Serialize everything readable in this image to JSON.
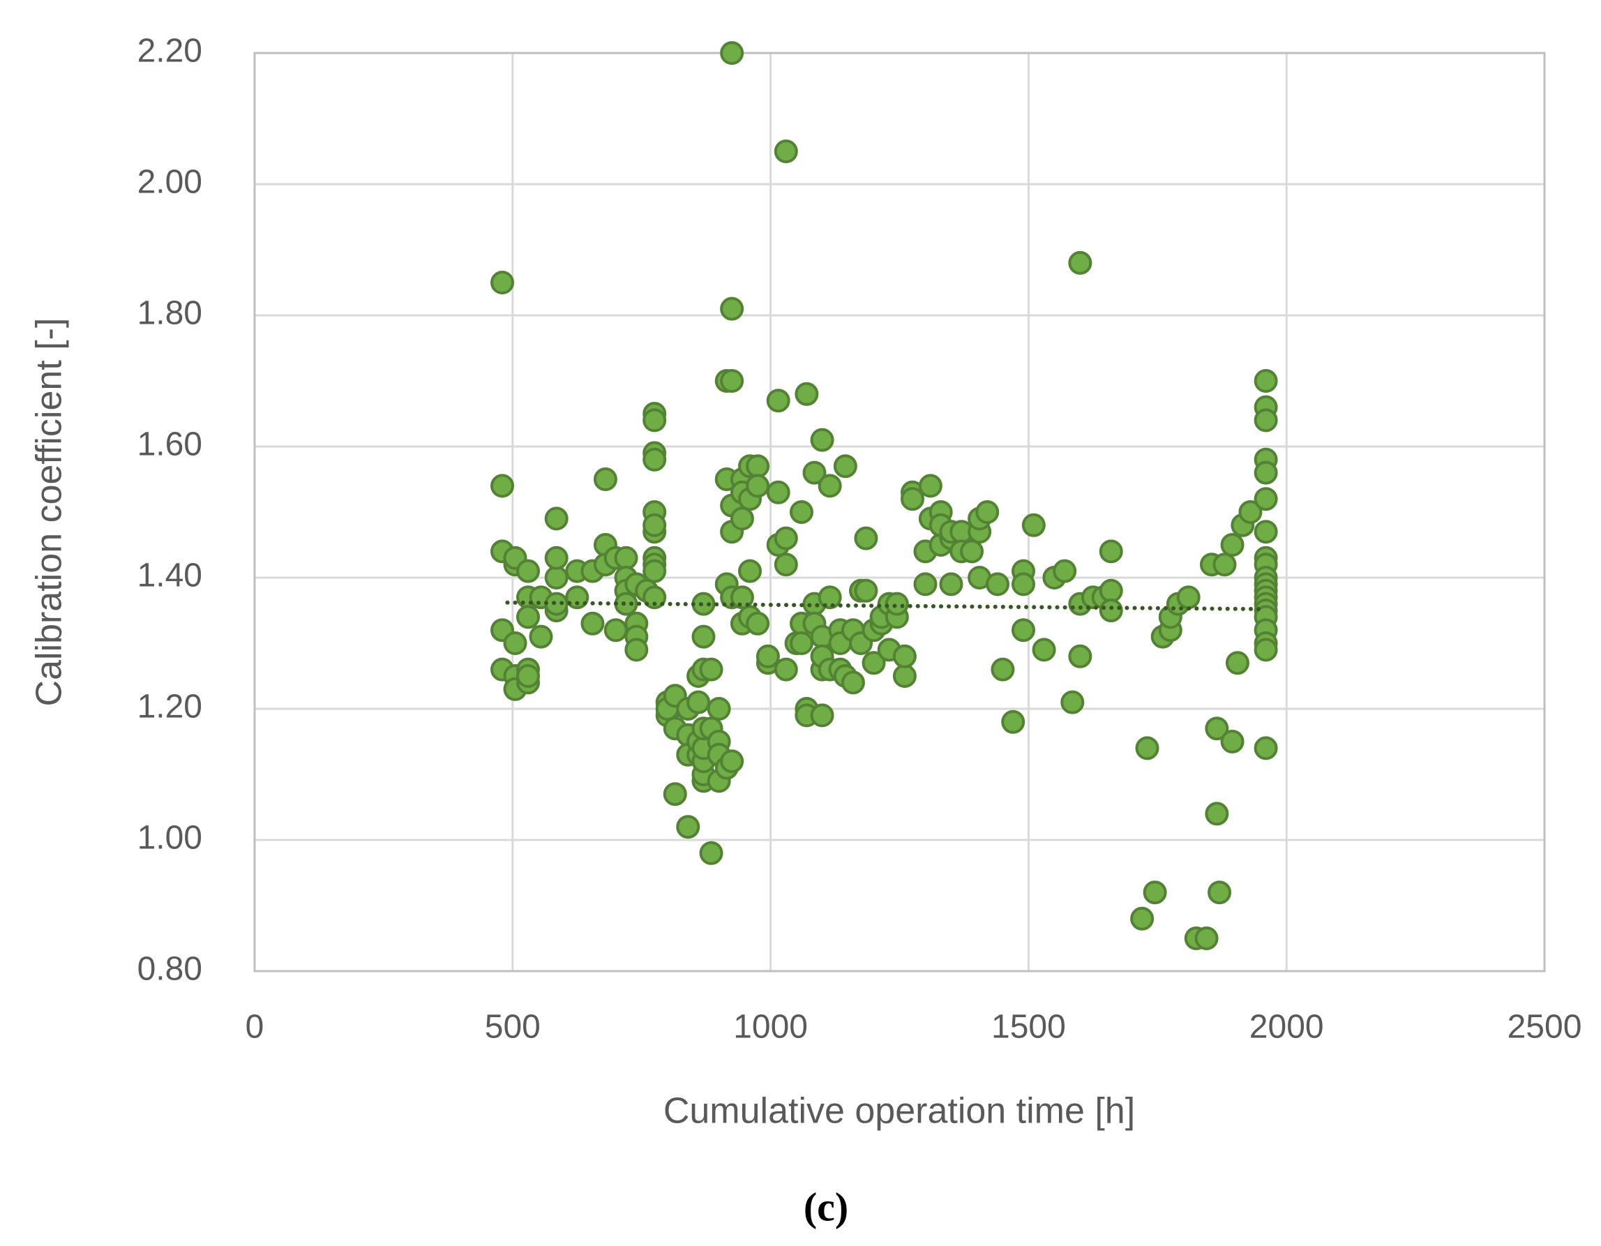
{
  "chart_data": {
    "type": "scatter",
    "xlabel": "Cumulative operation time [h]",
    "ylabel": "Calibration coefficient [-]",
    "caption": "(c)",
    "xlim": [
      0,
      2500
    ],
    "xticks": [
      0,
      500,
      1000,
      1500,
      2000,
      2500
    ],
    "ylim": [
      0.8,
      2.2
    ],
    "yticks": [
      {
        "value": 0.8,
        "label": "0.80"
      },
      {
        "value": 1.0,
        "label": "1.00"
      },
      {
        "value": 1.2,
        "label": "1.20"
      },
      {
        "value": 1.4,
        "label": "1.40"
      },
      {
        "value": 1.6,
        "label": "1.60"
      },
      {
        "value": 1.8,
        "label": "1.80"
      },
      {
        "value": 2.0,
        "label": "2.00"
      },
      {
        "value": 2.2,
        "label": "2.20"
      }
    ],
    "grid": true,
    "color": "#70ad47",
    "edge_color": "#548235",
    "x": [
      480,
      480,
      480,
      480,
      480,
      505,
      505,
      505,
      505,
      505,
      530,
      530,
      530,
      530,
      530,
      530,
      555,
      555,
      585,
      585,
      585,
      585,
      585,
      625,
      625,
      655,
      655,
      680,
      680,
      680,
      700,
      700,
      720,
      720,
      720,
      720,
      740,
      740,
      740,
      740,
      760,
      775,
      775,
      775,
      775,
      775,
      775,
      775,
      775,
      775,
      775,
      775,
      800,
      800,
      800,
      815,
      815,
      815,
      840,
      840,
      840,
      840,
      860,
      860,
      860,
      860,
      870,
      870,
      870,
      870,
      870,
      870,
      870,
      870,
      885,
      885,
      885,
      900,
      900,
      900,
      900,
      915,
      915,
      915,
      915,
      925,
      925,
      925,
      925,
      925,
      925,
      925,
      945,
      945,
      945,
      945,
      945,
      960,
      960,
      960,
      960,
      975,
      975,
      975,
      995,
      995,
      1015,
      1015,
      1015,
      1030,
      1030,
      1030,
      1030,
      1050,
      1060,
      1060,
      1060,
      1070,
      1070,
      1070,
      1085,
      1085,
      1085,
      1100,
      1100,
      1100,
      1100,
      1100,
      1115,
      1115,
      1115,
      1135,
      1135,
      1135,
      1145,
      1145,
      1160,
      1160,
      1175,
      1175,
      1185,
      1185,
      1200,
      1200,
      1215,
      1215,
      1230,
      1230,
      1245,
      1245,
      1260,
      1260,
      1275,
      1275,
      1300,
      1300,
      1310,
      1310,
      1330,
      1330,
      1330,
      1350,
      1350,
      1350,
      1370,
      1370,
      1390,
      1405,
      1405,
      1405,
      1420,
      1440,
      1450,
      1470,
      1490,
      1490,
      1490,
      1510,
      1530,
      1550,
      1570,
      1585,
      1600,
      1600,
      1600,
      1625,
      1645,
      1660,
      1660,
      1660,
      1720,
      1730,
      1745,
      1760,
      1775,
      1775,
      1790,
      1810,
      1825,
      1845,
      1855,
      1865,
      1865,
      1870,
      1880,
      1895,
      1895,
      1905,
      1915,
      1930,
      1960,
      1960,
      1960,
      1960,
      1960,
      1960,
      1960,
      1960,
      1960,
      1960,
      1960,
      1960,
      1960,
      1960,
      1960,
      1960,
      1960,
      1960,
      1960,
      1960
    ],
    "values": [
      1.85,
      1.54,
      1.44,
      1.32,
      1.26,
      1.42,
      1.43,
      1.3,
      1.25,
      1.23,
      1.41,
      1.37,
      1.34,
      1.26,
      1.24,
      1.25,
      1.31,
      1.37,
      1.35,
      1.36,
      1.4,
      1.49,
      1.43,
      1.37,
      1.41,
      1.33,
      1.41,
      1.55,
      1.45,
      1.42,
      1.32,
      1.43,
      1.43,
      1.4,
      1.38,
      1.36,
      1.33,
      1.31,
      1.29,
      1.39,
      1.38,
      1.65,
      1.64,
      1.59,
      1.58,
      1.5,
      1.47,
      1.48,
      1.43,
      1.42,
      1.37,
      1.41,
      1.21,
      1.19,
      1.2,
      1.22,
      1.17,
      1.07,
      1.2,
      1.16,
      1.13,
      1.02,
      1.13,
      1.15,
      1.21,
      1.25,
      1.36,
      1.31,
      1.26,
      1.09,
      1.1,
      1.12,
      1.14,
      1.17,
      0.98,
      1.26,
      1.17,
      1.2,
      1.15,
      1.13,
      1.09,
      1.7,
      1.55,
      1.39,
      1.11,
      2.2,
      1.81,
      1.7,
      1.51,
      1.47,
      1.37,
      1.12,
      1.55,
      1.53,
      1.49,
      1.37,
      1.33,
      1.57,
      1.52,
      1.41,
      1.34,
      1.57,
      1.54,
      1.33,
      1.27,
      1.28,
      1.67,
      1.53,
      1.45,
      2.05,
      1.46,
      1.42,
      1.26,
      1.3,
      1.5,
      1.33,
      1.3,
      1.68,
      1.2,
      1.19,
      1.56,
      1.36,
      1.33,
      1.61,
      1.26,
      1.19,
      1.31,
      1.28,
      1.54,
      1.37,
      1.26,
      1.32,
      1.3,
      1.26,
      1.57,
      1.25,
      1.24,
      1.32,
      1.3,
      1.38,
      1.46,
      1.38,
      1.32,
      1.27,
      1.33,
      1.34,
      1.29,
      1.36,
      1.34,
      1.36,
      1.25,
      1.28,
      1.53,
      1.52,
      1.44,
      1.39,
      1.49,
      1.54,
      1.5,
      1.45,
      1.48,
      1.46,
      1.47,
      1.39,
      1.47,
      1.44,
      1.44,
      1.47,
      1.4,
      1.49,
      1.5,
      1.39,
      1.26,
      1.18,
      1.41,
      1.39,
      1.32,
      1.48,
      1.29,
      1.4,
      1.41,
      1.21,
      1.88,
      1.36,
      1.28,
      1.37,
      1.37,
      1.44,
      1.38,
      1.35,
      0.88,
      1.14,
      0.92,
      1.31,
      1.32,
      1.34,
      1.36,
      1.37,
      0.85,
      0.85,
      1.42,
      1.17,
      1.04,
      0.92,
      1.42,
      1.45,
      1.15,
      1.27,
      1.48,
      1.5,
      1.7,
      1.66,
      1.64,
      1.58,
      1.56,
      1.52,
      1.47,
      1.43,
      1.42,
      1.4,
      1.39,
      1.38,
      1.37,
      1.36,
      1.35,
      1.34,
      1.32,
      1.3,
      1.29,
      1.14
    ],
    "trendline": {
      "x": [
        490,
        1960
      ],
      "values": [
        1.362,
        1.352
      ],
      "color": "#375623"
    }
  }
}
